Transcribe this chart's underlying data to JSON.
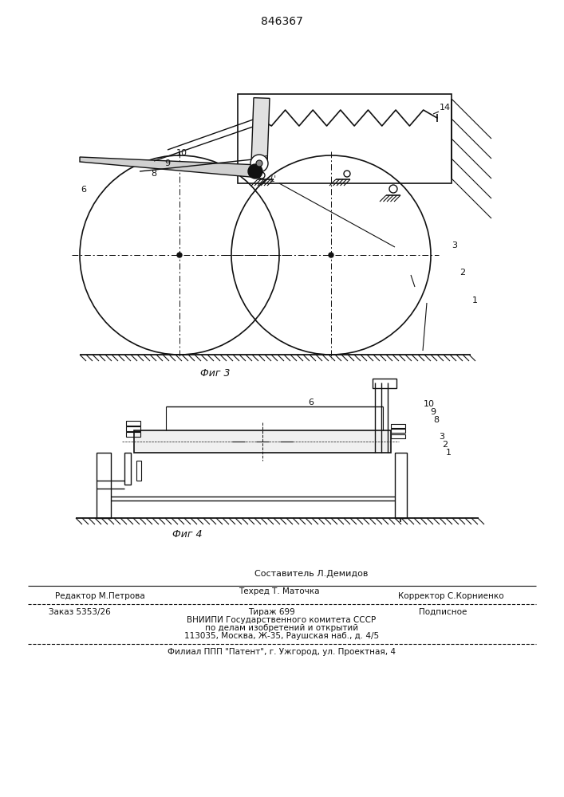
{
  "title": "846367",
  "fig3_label": "Фиг 3",
  "fig4_label": "Фиг 4",
  "line_color": "#111111",
  "editor_line1": "Редактор М.Петрова",
  "editor_line2": "Техред Т. Маточка",
  "editor_line3": "Корректор С.Корниенко",
  "sostavitel_line": "Составитель Л.Демидов",
  "order_line": "Заказ 5353/26",
  "tirazh_line": "Тираж 699",
  "podpisnoe_line": "Подписное",
  "vniiipi_line1": "ВНИИПИ Государственного комитета СССР",
  "vniiipi_line2": "по делам изобретений и открытий",
  "vniiipi_line3": "113035, Москва, Ж-35, Раушская наб., д. 4/5",
  "filial_line": "Филиал ППП \"Патент\", г. Ужгород, ул. Проектная, 4"
}
